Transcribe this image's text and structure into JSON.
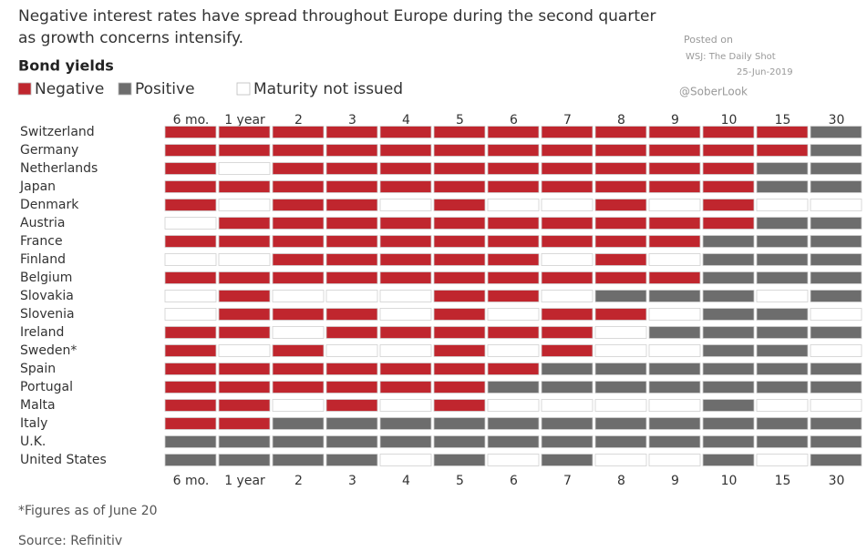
{
  "chart_data": {
    "type": "heatmap",
    "title": [
      "Negative interest rates have spread throughout Europe during the second quarter",
      "as growth concerns intensify."
    ],
    "subtitle": "Bond yields",
    "annotations": [
      "Posted on",
      "WSJ: The Daily Shot",
      "25-Jun-2019",
      "@SoberLook"
    ],
    "legend": [
      {
        "name": "Negative",
        "color": "#c0262e"
      },
      {
        "name": "Positive",
        "color": "#6d6d6d"
      },
      {
        "name": "Maturity not issued",
        "color": "#ffffff"
      }
    ],
    "columns": [
      "6 mo.",
      "1 year",
      "2",
      "3",
      "4",
      "5",
      "6",
      "7",
      "8",
      "9",
      "10",
      "15",
      "30"
    ],
    "rows": [
      "Switzerland",
      "Germany",
      "Netherlands",
      "Japan",
      "Denmark",
      "Austria",
      "France",
      "Finland",
      "Belgium",
      "Slovakia",
      "Slovenia",
      "Ireland",
      "Sweden*",
      "Spain",
      "Portugal",
      "Malta",
      "Italy",
      "U.K.",
      "United States"
    ],
    "values": [
      [
        0,
        0,
        0,
        0,
        0,
        0,
        0,
        0,
        0,
        0,
        0,
        0,
        1
      ],
      [
        0,
        0,
        0,
        0,
        0,
        0,
        0,
        0,
        0,
        0,
        0,
        0,
        1
      ],
      [
        0,
        2,
        0,
        0,
        0,
        0,
        0,
        0,
        0,
        0,
        0,
        1,
        1
      ],
      [
        0,
        0,
        0,
        0,
        0,
        0,
        0,
        0,
        0,
        0,
        0,
        1,
        1
      ],
      [
        0,
        2,
        0,
        0,
        2,
        0,
        2,
        2,
        0,
        2,
        0,
        2,
        2
      ],
      [
        2,
        0,
        0,
        0,
        0,
        0,
        0,
        0,
        0,
        0,
        0,
        1,
        1
      ],
      [
        0,
        0,
        0,
        0,
        0,
        0,
        0,
        0,
        0,
        0,
        1,
        1,
        1
      ],
      [
        2,
        2,
        0,
        0,
        0,
        0,
        0,
        2,
        0,
        2,
        1,
        1,
        1
      ],
      [
        0,
        0,
        0,
        0,
        0,
        0,
        0,
        0,
        0,
        0,
        1,
        1,
        1
      ],
      [
        2,
        0,
        2,
        2,
        2,
        0,
        0,
        2,
        1,
        1,
        1,
        2,
        1
      ],
      [
        2,
        0,
        0,
        0,
        2,
        0,
        2,
        0,
        0,
        2,
        1,
        1,
        2
      ],
      [
        0,
        0,
        2,
        0,
        0,
        0,
        0,
        0,
        2,
        1,
        1,
        1,
        1
      ],
      [
        0,
        2,
        0,
        2,
        2,
        0,
        2,
        0,
        2,
        2,
        1,
        1,
        2
      ],
      [
        0,
        0,
        0,
        0,
        0,
        0,
        0,
        1,
        1,
        1,
        1,
        1,
        1
      ],
      [
        0,
        0,
        0,
        0,
        0,
        0,
        1,
        1,
        1,
        1,
        1,
        1,
        1
      ],
      [
        0,
        0,
        2,
        0,
        2,
        0,
        2,
        2,
        2,
        2,
        1,
        2,
        2
      ],
      [
        0,
        0,
        1,
        1,
        1,
        1,
        1,
        1,
        1,
        1,
        1,
        1,
        1
      ],
      [
        1,
        1,
        1,
        1,
        1,
        1,
        1,
        1,
        1,
        1,
        1,
        1,
        1
      ],
      [
        1,
        1,
        1,
        1,
        2,
        1,
        2,
        1,
        2,
        2,
        1,
        2,
        1
      ]
    ],
    "footnote": "*Figures as of June 20",
    "source": "Source: Refinitiv"
  }
}
